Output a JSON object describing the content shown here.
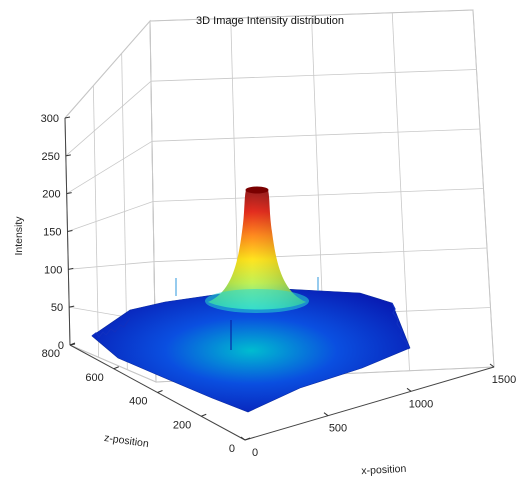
{
  "chart_data": {
    "type": "surface3d",
    "title": "3D Image Intensity distribution",
    "xlabel": "x-position",
    "ylabel": "z-position",
    "zlabel": "Intensity",
    "xlim": [
      0,
      1500
    ],
    "ylim": [
      0,
      800
    ],
    "zlim": [
      0,
      300
    ],
    "xticks": [
      0,
      500,
      1000,
      1500
    ],
    "yticks": [
      0,
      200,
      400,
      600,
      800
    ],
    "zticks": [
      0,
      50,
      100,
      150,
      200,
      250,
      300
    ],
    "xtick_labels": [
      "0",
      "500",
      "1000",
      "1500"
    ],
    "ytick_labels": [
      "0",
      "200",
      "400",
      "600",
      "800"
    ],
    "ztick_labels": [
      "0",
      "50",
      "100",
      "150",
      "200",
      "250",
      "300"
    ],
    "grid": true,
    "colormap": "jet",
    "peak": {
      "x": 700,
      "y": 400,
      "intensity": 210
    },
    "background_level": 20
  }
}
